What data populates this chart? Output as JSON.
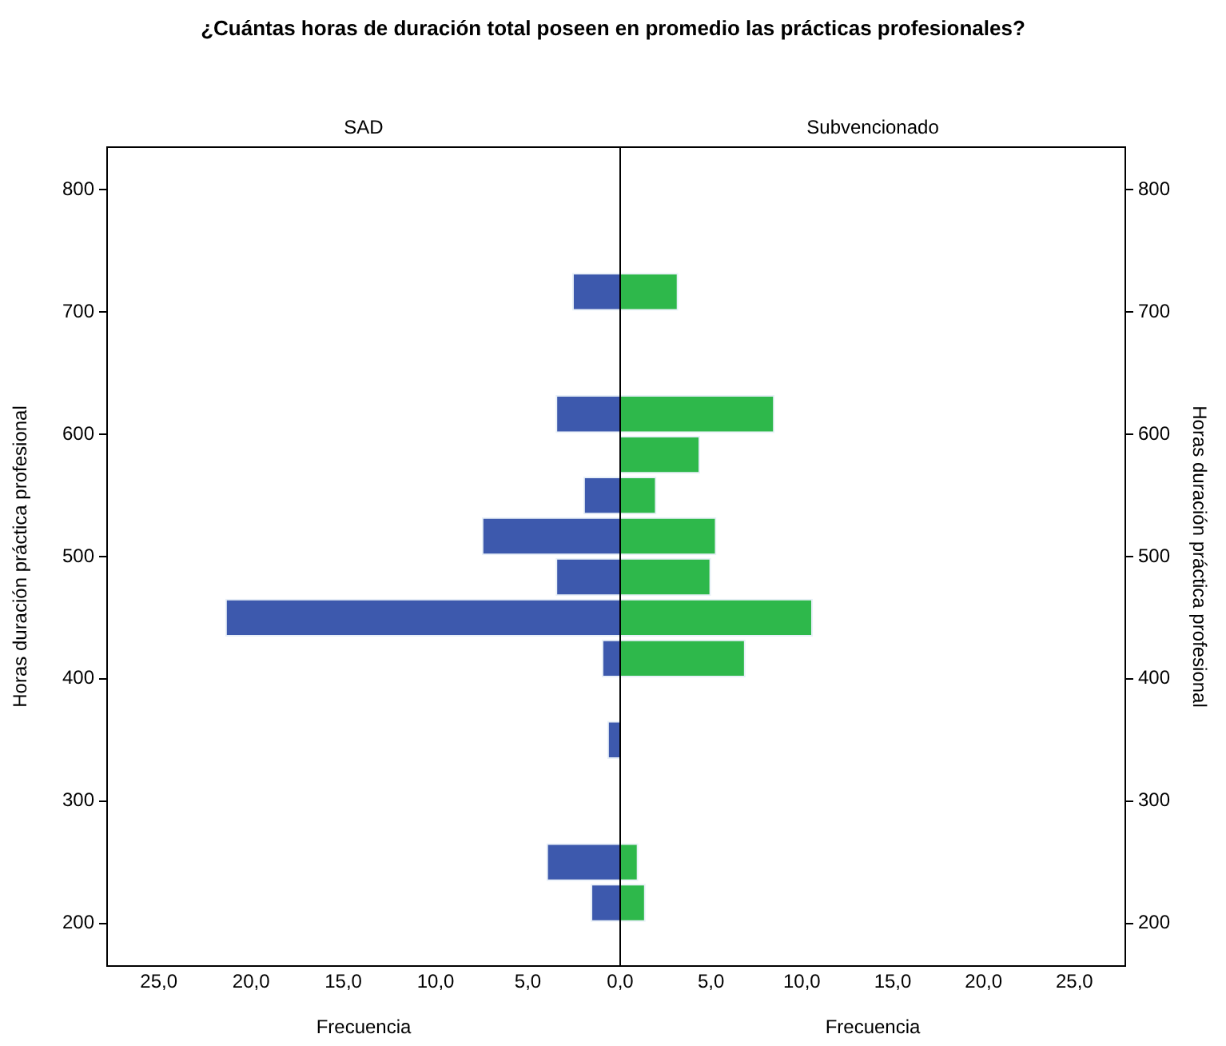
{
  "chart_data": [
    {
      "type": "histogram",
      "orientation": "horizontal",
      "title": "¿Cuántas horas de duración total poseen en promedio las prácticas profesionales?",
      "subtitle": "SAD",
      "xlabel": "Frecuencia",
      "ylabel": "Horas duración práctica profesional",
      "color": "#3d59ad",
      "bins": [
        200,
        233.33,
        266.67,
        300,
        333.33,
        366.67,
        400,
        433.33,
        466.67,
        500,
        533.33,
        566.67,
        600,
        633.33,
        666.67,
        700,
        733.33
      ],
      "values": [
        1.6,
        4.0,
        0,
        0,
        0.7,
        0,
        1.0,
        21.4,
        3.5,
        7.5,
        2.0,
        0,
        3.5,
        0,
        0,
        2.6
      ],
      "xlim": [
        27.8,
        0
      ],
      "xticks": [
        {
          "value": 25,
          "label": "25,0"
        },
        {
          "value": 20,
          "label": "20,0"
        },
        {
          "value": 15,
          "label": "15,0"
        },
        {
          "value": 10,
          "label": "10,0"
        },
        {
          "value": 5,
          "label": "5,0"
        },
        {
          "value": 0,
          "label": null
        }
      ],
      "ylim": [
        165,
        835
      ],
      "yticks": [
        200,
        300,
        400,
        500,
        600,
        700,
        800
      ]
    },
    {
      "type": "histogram",
      "orientation": "horizontal",
      "subtitle": "Subvencionado",
      "xlabel": "Frecuencia",
      "ylabel": "Horas duración práctica profesional",
      "color": "#2eb84b",
      "bins": [
        200,
        233.33,
        266.67,
        300,
        333.33,
        366.67,
        400,
        433.33,
        466.67,
        500,
        533.33,
        566.67,
        600,
        633.33,
        666.67,
        700,
        733.33
      ],
      "values": [
        1.4,
        1.0,
        0,
        0,
        0,
        0,
        6.9,
        10.6,
        5.0,
        5.3,
        2.0,
        4.4,
        8.5,
        0,
        0,
        3.2
      ],
      "xlim": [
        0,
        27.8
      ],
      "xticks": [
        {
          "value": 0,
          "label": "0,0"
        },
        {
          "value": 5,
          "label": "5,0"
        },
        {
          "value": 10,
          "label": "10,0"
        },
        {
          "value": 15,
          "label": "15,0"
        },
        {
          "value": 20,
          "label": "20,0"
        },
        {
          "value": 25,
          "label": "25,0"
        }
      ],
      "ylim": [
        165,
        835
      ],
      "yticks": [
        200,
        300,
        400,
        500,
        600,
        700,
        800
      ]
    }
  ]
}
